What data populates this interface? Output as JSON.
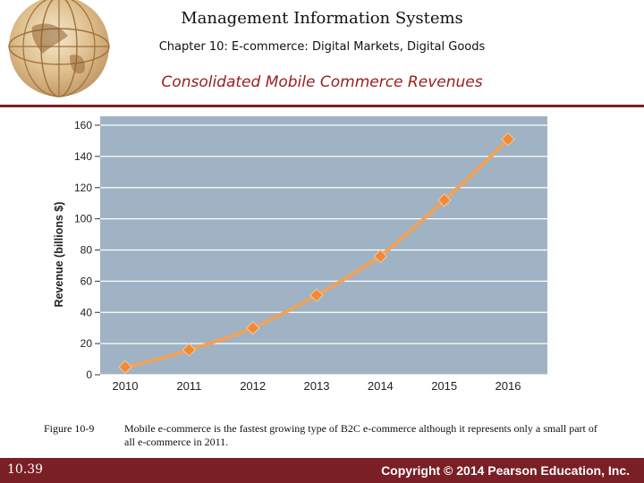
{
  "header": {
    "title": "Management Information Systems",
    "subtitle": "Chapter 10: E-commerce: Digital Markets, Digital Goods",
    "slide_heading": "Consolidated Mobile Commerce Revenues"
  },
  "figure": {
    "label": "Figure 10-9",
    "caption": "Mobile e-commerce is the fastest growing type of B2C e-commerce although it represents only a small part of all e-commerce in 2011."
  },
  "footer": {
    "slide_number": "10.39",
    "copyright": "Copyright © 2014 Pearson Education, Inc."
  },
  "colors": {
    "accent": "#7a1f25",
    "heading": "#9b1b1e",
    "plot_background": "#9fb3c4",
    "line": "#f0a25a",
    "marker": "#f08a36"
  },
  "chart_data": {
    "type": "line",
    "ylabel": "Revenue (billions $)",
    "xlabel": "",
    "title": "",
    "categories": [
      "2010",
      "2011",
      "2012",
      "2013",
      "2014",
      "2015",
      "2016"
    ],
    "series": [
      {
        "values": [
          5,
          16,
          30,
          51,
          76,
          112,
          151
        ]
      }
    ],
    "ylim": [
      0,
      160
    ],
    "yticks": [
      0,
      20,
      40,
      60,
      80,
      100,
      120,
      140,
      160
    ],
    "grid": true,
    "legend": "none"
  }
}
